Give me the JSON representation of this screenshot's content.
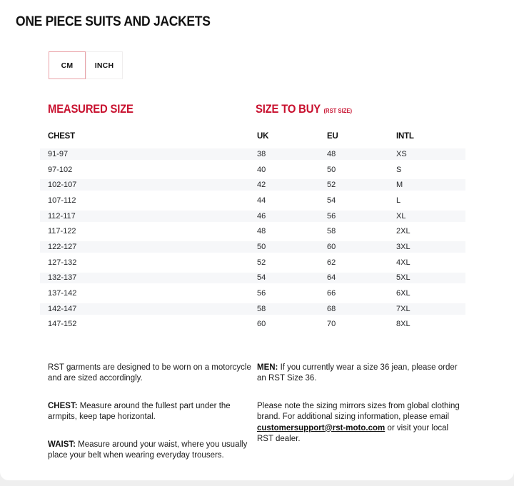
{
  "page": {
    "title": "ONE PIECE SUITS AND JACKETS"
  },
  "unit_toggle": {
    "options": [
      {
        "label": "CM",
        "selected": true
      },
      {
        "label": "INCH",
        "selected": false
      }
    ]
  },
  "sections": {
    "measured_size_heading": "MEASURED SIZE",
    "size_to_buy_heading": "SIZE TO BUY",
    "size_to_buy_sub": "(RST SIZE)"
  },
  "table": {
    "columns": [
      "CHEST",
      "UK",
      "EU",
      "INTL"
    ],
    "rows": [
      [
        "91-97",
        "38",
        "48",
        "XS"
      ],
      [
        "97-102",
        "40",
        "50",
        "S"
      ],
      [
        "102-107",
        "42",
        "52",
        "M"
      ],
      [
        "107-112",
        "44",
        "54",
        "L"
      ],
      [
        "112-117",
        "46",
        "56",
        "XL"
      ],
      [
        "117-122",
        "48",
        "58",
        "2XL"
      ],
      [
        "122-127",
        "50",
        "60",
        "3XL"
      ],
      [
        "127-132",
        "52",
        "62",
        "4XL"
      ],
      [
        "132-137",
        "54",
        "64",
        "5XL"
      ],
      [
        "137-142",
        "56",
        "66",
        "6XL"
      ],
      [
        "142-147",
        "58",
        "68",
        "7XL"
      ],
      [
        "147-152",
        "60",
        "70",
        "8XL"
      ]
    ]
  },
  "notes": {
    "left": [
      {
        "label": "",
        "text": "RST garments are designed to be worn on a motorcycle and are sized accordingly."
      },
      {
        "label": "CHEST:",
        "text": " Measure around the fullest part under the armpits, keep tape horizontal."
      },
      {
        "label": "WAIST:",
        "text": " Measure around your waist, where you usually place your belt when wearing everyday trousers."
      }
    ],
    "right": {
      "men": {
        "label": "MEN:",
        "text": " If you currently wear a size 36 jean, please order an RST Size 36."
      },
      "sizing": {
        "pre": "Please note the sizing mirrors sizes from global clothing brand. For additional sizing information, please email ",
        "link": "customersupport@rst-moto.com",
        "post": " or visit your local RST dealer."
      }
    }
  },
  "colors": {
    "accent_red": "#c8102e",
    "stripe": "#f6f7f9",
    "selected_border": "#eaa3a9",
    "page_background": "#efefef"
  }
}
